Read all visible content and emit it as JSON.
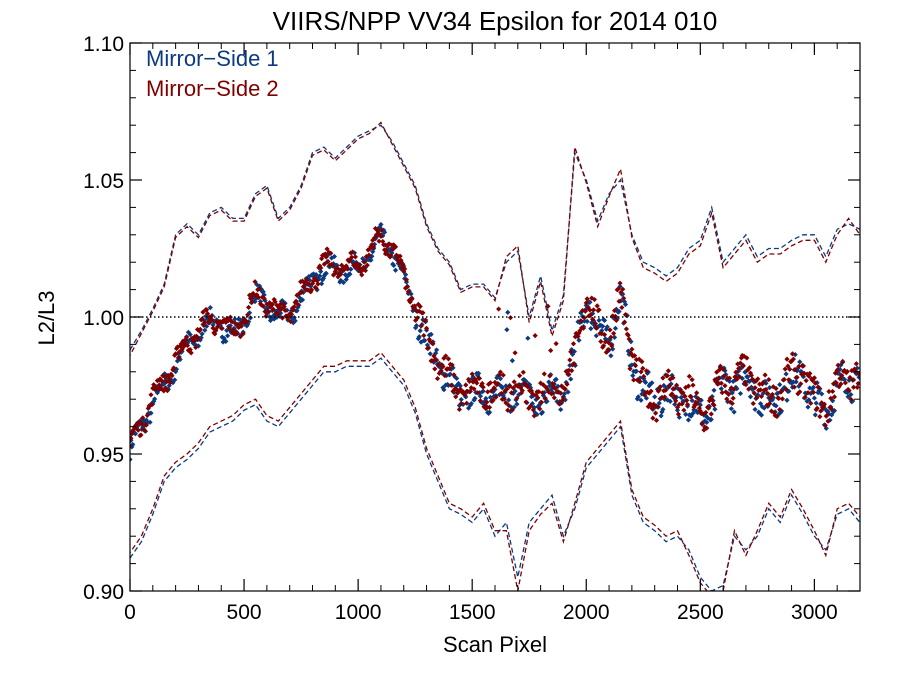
{
  "chart_data": {
    "type": "scatter",
    "title": "VIIRS/NPP VV34 Epsilon for 2014 010",
    "xlabel": "Scan Pixel",
    "ylabel": "L2/L3",
    "xlim": [
      0,
      3200
    ],
    "ylim": [
      0.9,
      1.1
    ],
    "x_ticks": [
      0,
      500,
      1000,
      1500,
      2000,
      2500,
      3000
    ],
    "y_ticks": [
      0.9,
      0.95,
      1.0,
      1.05,
      1.1
    ],
    "x_tick_labels": [
      "0",
      "500",
      "1000",
      "1500",
      "2000",
      "2500",
      "3000"
    ],
    "y_tick_labels": [
      "0.90",
      "0.95",
      "1.00",
      "1.05",
      "1.10"
    ],
    "reference_line": 1.0,
    "legend_position": "top-left",
    "series": [
      {
        "name": "Mirror−Side 1",
        "color": "#0b3a80",
        "mean": {
          "x": [
            0,
            50,
            100,
            150,
            200,
            250,
            300,
            350,
            400,
            450,
            500,
            550,
            600,
            650,
            700,
            750,
            800,
            850,
            900,
            950,
            1000,
            1050,
            1100,
            1150,
            1200,
            1250,
            1300,
            1350,
            1400,
            1450,
            1500,
            1550,
            1600,
            1650,
            1700,
            1750,
            1800,
            1850,
            1900,
            1950,
            2000,
            2050,
            2100,
            2150,
            2200,
            2250,
            2300,
            2350,
            2400,
            2450,
            2500,
            2550,
            2600,
            2650,
            2700,
            2750,
            2800,
            2850,
            2900,
            2950,
            3000,
            3050,
            3100,
            3150,
            3200
          ],
          "y": [
            0.951,
            0.958,
            0.967,
            0.976,
            0.985,
            0.99,
            0.992,
            0.996,
            0.998,
            0.995,
            1.0,
            1.005,
            1.003,
            1.0,
            1.003,
            1.008,
            1.012,
            1.016,
            1.017,
            1.02,
            1.019,
            1.022,
            1.026,
            1.024,
            1.015,
            1.005,
            0.99,
            0.982,
            0.975,
            0.973,
            0.974,
            0.972,
            0.97,
            0.971,
            0.974,
            0.972,
            0.97,
            0.971,
            0.972,
            0.985,
            1.01,
            0.995,
            0.99,
            1.005,
            0.985,
            0.975,
            0.97,
            0.972,
            0.968,
            0.97,
            0.966,
            0.968,
            0.975,
            0.972,
            0.978,
            0.975,
            0.97,
            0.972,
            0.975,
            0.978,
            0.97,
            0.968,
            0.975,
            0.974,
            0.978
          ]
        },
        "upper": {
          "x": [
            0,
            50,
            100,
            150,
            200,
            250,
            300,
            350,
            400,
            450,
            500,
            550,
            600,
            650,
            700,
            750,
            800,
            850,
            900,
            950,
            1000,
            1050,
            1100,
            1150,
            1200,
            1250,
            1300,
            1350,
            1400,
            1450,
            1500,
            1550,
            1600,
            1650,
            1700,
            1750,
            1800,
            1850,
            1900,
            1950,
            2000,
            2050,
            2100,
            2150,
            2200,
            2250,
            2300,
            2350,
            2400,
            2450,
            2500,
            2550,
            2600,
            2650,
            2700,
            2750,
            2800,
            2850,
            2900,
            2950,
            3000,
            3050,
            3100,
            3150,
            3200
          ],
          "y": [
            0.988,
            0.995,
            1.003,
            1.012,
            1.03,
            1.034,
            1.03,
            1.038,
            1.04,
            1.036,
            1.036,
            1.045,
            1.048,
            1.036,
            1.04,
            1.048,
            1.06,
            1.062,
            1.058,
            1.062,
            1.066,
            1.068,
            1.07,
            1.064,
            1.056,
            1.048,
            1.034,
            1.025,
            1.02,
            1.01,
            1.012,
            1.012,
            1.007,
            1.02,
            1.024,
            1.0,
            1.015,
            0.995,
            1.008,
            1.06,
            1.05,
            1.035,
            1.045,
            1.05,
            1.03,
            1.02,
            1.018,
            1.015,
            1.018,
            1.025,
            1.028,
            1.04,
            1.02,
            1.025,
            1.03,
            1.022,
            1.025,
            1.025,
            1.028,
            1.03,
            1.03,
            1.022,
            1.032,
            1.034,
            1.032
          ]
        },
        "lower": {
          "x": [
            0,
            50,
            100,
            150,
            200,
            250,
            300,
            350,
            400,
            450,
            500,
            550,
            600,
            650,
            700,
            750,
            800,
            850,
            900,
            950,
            1000,
            1050,
            1100,
            1150,
            1200,
            1250,
            1300,
            1350,
            1400,
            1450,
            1500,
            1550,
            1600,
            1650,
            1700,
            1750,
            1800,
            1850,
            1900,
            1950,
            2000,
            2050,
            2100,
            2150,
            2200,
            2250,
            2300,
            2350,
            2400,
            2450,
            2500,
            2550,
            2600,
            2650,
            2700,
            2750,
            2800,
            2850,
            2900,
            2950,
            3000,
            3050,
            3100,
            3150,
            3200
          ],
          "y": [
            0.912,
            0.918,
            0.928,
            0.94,
            0.945,
            0.948,
            0.952,
            0.958,
            0.96,
            0.962,
            0.966,
            0.968,
            0.962,
            0.96,
            0.965,
            0.97,
            0.975,
            0.98,
            0.98,
            0.982,
            0.982,
            0.982,
            0.985,
            0.98,
            0.975,
            0.965,
            0.95,
            0.94,
            0.93,
            0.928,
            0.925,
            0.93,
            0.92,
            0.925,
            0.905,
            0.925,
            0.93,
            0.935,
            0.92,
            0.93,
            0.945,
            0.95,
            0.955,
            0.96,
            0.935,
            0.925,
            0.922,
            0.918,
            0.92,
            0.915,
            0.905,
            0.9,
            0.902,
            0.92,
            0.915,
            0.92,
            0.93,
            0.925,
            0.935,
            0.928,
            0.92,
            0.915,
            0.928,
            0.93,
            0.925
          ]
        }
      },
      {
        "name": "Mirror−Side 2",
        "color": "#800000",
        "mean": {
          "x": [
            0,
            50,
            100,
            150,
            200,
            250,
            300,
            350,
            400,
            450,
            500,
            550,
            600,
            650,
            700,
            750,
            800,
            850,
            900,
            950,
            1000,
            1050,
            1100,
            1150,
            1200,
            1250,
            1300,
            1350,
            1400,
            1450,
            1500,
            1550,
            1600,
            1650,
            1700,
            1750,
            1800,
            1850,
            1900,
            1950,
            2000,
            2050,
            2100,
            2150,
            2200,
            2250,
            2300,
            2350,
            2400,
            2450,
            2500,
            2550,
            2600,
            2650,
            2700,
            2750,
            2800,
            2850,
            2900,
            2950,
            3000,
            3050,
            3100,
            3150,
            3200
          ],
          "y": [
            0.953,
            0.96,
            0.969,
            0.978,
            0.986,
            0.991,
            0.993,
            0.997,
            0.999,
            0.996,
            1.001,
            1.006,
            1.004,
            1.001,
            1.004,
            1.009,
            1.013,
            1.017,
            1.018,
            1.021,
            1.02,
            1.023,
            1.027,
            1.025,
            1.016,
            1.006,
            0.991,
            0.983,
            0.976,
            0.974,
            0.975,
            0.973,
            0.971,
            0.972,
            0.975,
            0.973,
            0.971,
            0.972,
            0.973,
            0.986,
            1.011,
            0.996,
            0.991,
            1.006,
            0.986,
            0.976,
            0.971,
            0.973,
            0.969,
            0.971,
            0.967,
            0.969,
            0.976,
            0.973,
            0.979,
            0.976,
            0.971,
            0.973,
            0.976,
            0.979,
            0.971,
            0.969,
            0.976,
            0.975,
            0.979
          ]
        },
        "upper": {
          "x": [
            0,
            50,
            100,
            150,
            200,
            250,
            300,
            350,
            400,
            450,
            500,
            550,
            600,
            650,
            700,
            750,
            800,
            850,
            900,
            950,
            1000,
            1050,
            1100,
            1150,
            1200,
            1250,
            1300,
            1350,
            1400,
            1450,
            1500,
            1550,
            1600,
            1650,
            1700,
            1750,
            1800,
            1850,
            1900,
            1950,
            2000,
            2050,
            2100,
            2150,
            2200,
            2250,
            2300,
            2350,
            2400,
            2450,
            2500,
            2550,
            2600,
            2650,
            2700,
            2750,
            2800,
            2850,
            2900,
            2950,
            3000,
            3050,
            3100,
            3150,
            3200
          ],
          "y": [
            0.986,
            0.994,
            1.002,
            1.011,
            1.029,
            1.033,
            1.029,
            1.037,
            1.039,
            1.035,
            1.035,
            1.044,
            1.047,
            1.035,
            1.039,
            1.047,
            1.059,
            1.061,
            1.057,
            1.061,
            1.065,
            1.067,
            1.071,
            1.063,
            1.055,
            1.047,
            1.033,
            1.024,
            1.019,
            1.009,
            1.011,
            1.011,
            1.006,
            1.022,
            1.026,
            0.998,
            1.013,
            0.993,
            1.006,
            1.062,
            1.049,
            1.033,
            1.044,
            1.054,
            1.029,
            1.018,
            1.016,
            1.013,
            1.016,
            1.023,
            1.026,
            1.038,
            1.018,
            1.023,
            1.028,
            1.02,
            1.023,
            1.023,
            1.026,
            1.028,
            1.028,
            1.02,
            1.03,
            1.036,
            1.03
          ]
        },
        "lower": {
          "x": [
            0,
            50,
            100,
            150,
            200,
            250,
            300,
            350,
            400,
            450,
            500,
            550,
            600,
            650,
            700,
            750,
            800,
            850,
            900,
            950,
            1000,
            1050,
            1100,
            1150,
            1200,
            1250,
            1300,
            1350,
            1400,
            1450,
            1500,
            1550,
            1600,
            1650,
            1700,
            1750,
            1800,
            1850,
            1900,
            1950,
            2000,
            2050,
            2100,
            2150,
            2200,
            2250,
            2300,
            2350,
            2400,
            2450,
            2500,
            2550,
            2600,
            2650,
            2700,
            2750,
            2800,
            2850,
            2900,
            2950,
            3000,
            3050,
            3100,
            3150,
            3200
          ],
          "y": [
            0.914,
            0.92,
            0.93,
            0.942,
            0.947,
            0.95,
            0.954,
            0.96,
            0.962,
            0.964,
            0.968,
            0.97,
            0.964,
            0.962,
            0.967,
            0.972,
            0.977,
            0.982,
            0.982,
            0.984,
            0.984,
            0.984,
            0.987,
            0.982,
            0.977,
            0.967,
            0.952,
            0.942,
            0.932,
            0.93,
            0.927,
            0.932,
            0.922,
            0.922,
            0.9,
            0.922,
            0.928,
            0.932,
            0.918,
            0.932,
            0.947,
            0.952,
            0.957,
            0.962,
            0.937,
            0.927,
            0.924,
            0.92,
            0.922,
            0.913,
            0.903,
            0.898,
            0.9,
            0.922,
            0.913,
            0.922,
            0.932,
            0.927,
            0.937,
            0.93,
            0.922,
            0.913,
            0.93,
            0.932,
            0.927
          ]
        }
      }
    ]
  }
}
